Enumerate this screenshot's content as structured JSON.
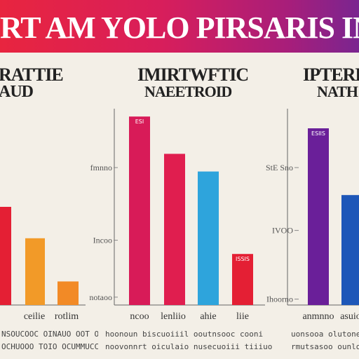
{
  "header": {
    "title": "RT AM YOLO PIRSARIS INITDRCIC"
  },
  "colors": {
    "banner_start": "#e8253f",
    "banner_end": "#7a2590",
    "background": "#f3efe7"
  },
  "chart_data": [
    {
      "type": "bar",
      "title": "RATTIE",
      "subtitle": "AUD",
      "categories": [
        "",
        "ceilie",
        "rotlim"
      ],
      "tick_labels": [],
      "values": [
        50,
        34,
        12
      ],
      "bar_colors": [
        "#e41f34",
        "#f29a28",
        "#f28a26"
      ],
      "ylim": [
        0,
        100
      ],
      "data_labels": [
        "",
        "",
        ""
      ],
      "caption": [
        "NSOUCOOC OINAUO OOT OCCAO",
        "OCHUOOO TOIO OCUMMUCCAC"
      ]
    },
    {
      "type": "bar",
      "title": "IMIRTWFTIC",
      "subtitle": "NAEETROID",
      "categories": [
        "ncoo",
        "lenliio",
        "ahie",
        "liie"
      ],
      "tick_labels": [
        "fmnno",
        "Incoo",
        "notaoo"
      ],
      "tick_values": [
        70,
        33,
        4
      ],
      "values": [
        96,
        77,
        68,
        26
      ],
      "bar_colors": [
        "#d81b58",
        "#e01e4f",
        "#2ea4dc",
        "#e41f34"
      ],
      "ylim": [
        0,
        100
      ],
      "data_labels": [
        "ESI",
        "",
        "",
        "ISSIS"
      ],
      "caption": [
        "hoonoun biscuoiiil ooutnsooc cooni",
        "noovonnrt oiculaio nusecuoiii tiiiuo"
      ]
    },
    {
      "type": "bar",
      "title": "IPTERE",
      "subtitle": "NATH",
      "categories": [
        "anmnno",
        "asuio"
      ],
      "tick_labels": [
        "StE Sno",
        "IVOO",
        "Ihoorno"
      ],
      "tick_values": [
        70,
        38,
        3
      ],
      "values": [
        90,
        56
      ],
      "bar_colors": [
        "#6a1f99",
        "#1e57b8"
      ],
      "ylim": [
        0,
        100
      ],
      "data_labels": [
        "ESIIS",
        ""
      ],
      "caption": [
        "uonsooa olutone",
        "rmutsasoo ounloun"
      ]
    }
  ]
}
